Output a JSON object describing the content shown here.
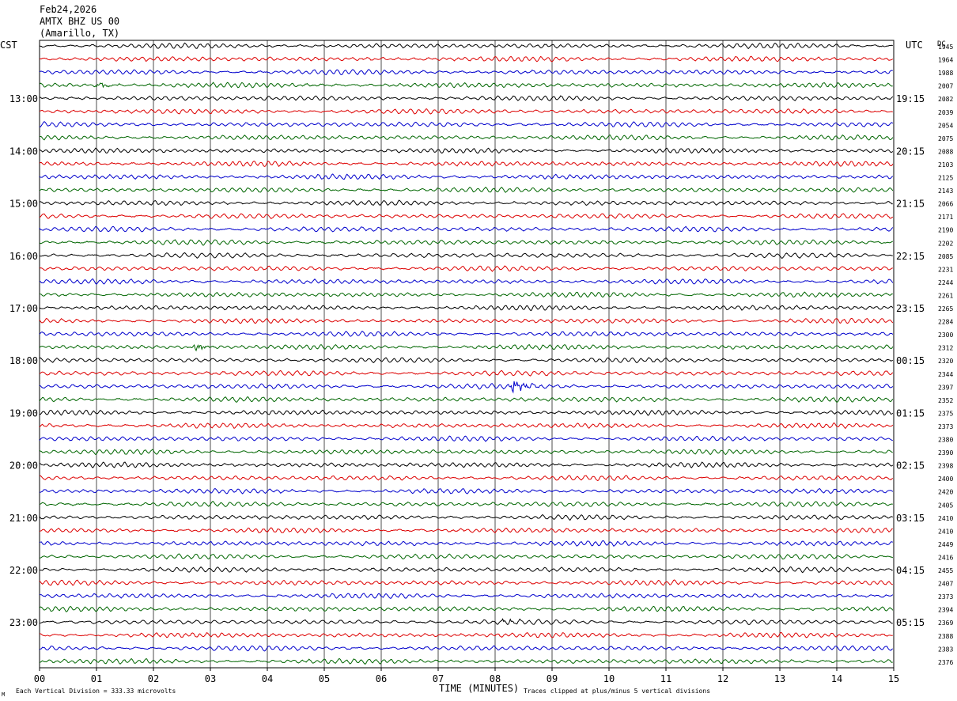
{
  "header": {
    "date": "Feb24,2026",
    "station": "AMTX BHZ US 00",
    "location": "(Amarillo, TX)"
  },
  "footer": {
    "scale_note": "Each Vertical Division =  333.33 microvolts",
    "clip_note": "Traces clipped at plus/minus 5 vertical divisions",
    "corner_mark": "M"
  },
  "colors": {
    "trace_cycle": [
      "#000000",
      "#dd0000",
      "#0000cc",
      "#006600"
    ],
    "grid": "#000000",
    "background": "#ffffff"
  },
  "chart_data": {
    "type": "line",
    "subtype": "helicorder",
    "xlabel": "TIME (MINUTES)",
    "x_ticks": [
      "00",
      "01",
      "02",
      "03",
      "04",
      "05",
      "06",
      "07",
      "08",
      "09",
      "10",
      "11",
      "12",
      "13",
      "14",
      "15"
    ],
    "xlim": [
      0,
      15
    ],
    "left_axis_title": "CST",
    "right_axis_title": "UTC",
    "right_col_title": "DC",
    "left_hour_labels": [
      "13:00",
      "14:00",
      "15:00",
      "16:00",
      "17:00",
      "18:00",
      "19:00",
      "20:00",
      "21:00",
      "22:00",
      "23:00"
    ],
    "right_hour_labels": [
      "19:15",
      "20:15",
      "21:15",
      "22:15",
      "23:15",
      "00:15",
      "01:15",
      "02:15",
      "03:15",
      "04:15",
      "05:15"
    ],
    "rows_per_hour": 4,
    "row_count": 48,
    "dc_offsets": [
      "1945",
      "1964",
      "1988",
      "2007",
      "2082",
      "2039",
      "2054",
      "2075",
      "2088",
      "2103",
      "2125",
      "2143",
      "2066",
      "2171",
      "2190",
      "2202",
      "2085",
      "2231",
      "2244",
      "2261",
      "2265",
      "2284",
      "2300",
      "2312",
      "2320",
      "2344",
      "2397",
      "2352",
      "2375",
      "2373",
      "2380",
      "2390",
      "2398",
      "2400",
      "2420",
      "2405",
      "2410",
      "2410",
      "2449",
      "2416",
      "2455",
      "2407",
      "2373",
      "2394",
      "2369",
      "2388",
      "2383",
      "2376"
    ],
    "events": [
      {
        "row": 26,
        "minute": 8.35,
        "amplitude": "large"
      },
      {
        "row": 23,
        "minute": 2.75,
        "amplitude": "medium"
      },
      {
        "row": 3,
        "minute": 1.1,
        "amplitude": "small"
      },
      {
        "row": 44,
        "minute": 8.2,
        "amplitude": "small"
      }
    ],
    "grid_vertical": true
  }
}
